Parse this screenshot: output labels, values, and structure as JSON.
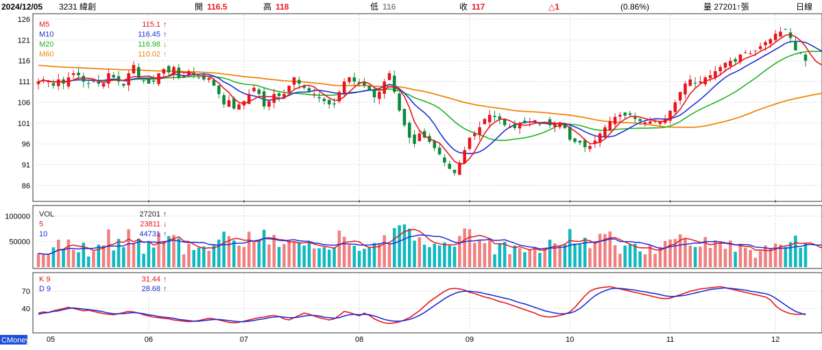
{
  "header": {
    "date": "2024/12/05",
    "code_name": "3231 緯創",
    "open_label": "開",
    "open_value": "116.5",
    "high_label": "高",
    "high_value": "118",
    "low_label": "低",
    "low_value": "116",
    "close_label": "收",
    "close_value": "117",
    "change": "△1",
    "change_pct": "(0.86%)",
    "volume": "量 27201↑張",
    "period": "日線"
  },
  "brand": "CMoney",
  "colors": {
    "up": "#e8141c",
    "down": "#0a8a3a",
    "ma5": "#e8141c",
    "ma10": "#1a2fd6",
    "ma20": "#1fb31f",
    "ma60": "#f0860c",
    "vol_up": "#f08080",
    "vol_down": "#10b8c0",
    "k": "#e8141c",
    "d": "#1a2fd6",
    "grid": "#b8b8b8",
    "frame": "#333333",
    "brand_bg": "#1c4fd8"
  },
  "price_legend": [
    {
      "label": "M5",
      "value": "115.1",
      "arrow": "↑",
      "color": "#e8141c"
    },
    {
      "label": "M10",
      "value": "116.45",
      "arrow": "↑",
      "color": "#1a2fd6"
    },
    {
      "label": "M20",
      "value": "116.98",
      "arrow": "↓",
      "color": "#1fb31f"
    },
    {
      "label": "M60",
      "value": "110.02",
      "arrow": "↑",
      "color": "#f0860c"
    }
  ],
  "volume_legend": [
    {
      "label": "VOL",
      "value": "27201",
      "arrow": "↑",
      "color": "#222222"
    },
    {
      "label": "5",
      "value": "23811",
      "arrow": "↓",
      "color": "#e8141c"
    },
    {
      "label": "10",
      "value": "44731",
      "arrow": "↑",
      "color": "#1a2fd6"
    }
  ],
  "kd_legend": [
    {
      "label": "K 9",
      "value": "31.44",
      "arrow": "↑",
      "color": "#e8141c"
    },
    {
      "label": "D 9",
      "value": "28.68",
      "arrow": "↑",
      "color": "#1a2fd6"
    }
  ],
  "chart_data": {
    "type": "candlestick",
    "price_axis": {
      "ticks": [
        "126",
        "121",
        "116",
        "111",
        "106",
        "101",
        "96",
        "91",
        "86"
      ],
      "min": 82.5,
      "max": 127
    },
    "volume_axis": {
      "ticks": [
        "100000",
        "50000"
      ],
      "max": 118000
    },
    "kd_axis": {
      "ticks": [
        "70",
        "40"
      ],
      "min": 0,
      "max": 100
    },
    "months": [
      "05",
      "06",
      "07",
      "08",
      "09",
      "10",
      "11",
      "12"
    ],
    "month_start_index": [
      0,
      22,
      41,
      64,
      86,
      106,
      126,
      147
    ],
    "n": 154,
    "close": [
      111,
      111.5,
      111,
      110,
      111.5,
      110.5,
      112,
      113,
      112.5,
      111,
      110.5,
      111,
      110.5,
      110.5,
      113,
      112,
      111,
      110,
      113,
      115,
      112,
      111.2,
      110.5,
      111,
      113,
      114,
      113.2,
      114.5,
      112,
      112.3,
      113.5,
      112.5,
      111.8,
      111.5,
      111.8,
      110,
      108,
      105.5,
      106.5,
      104.5,
      105.5,
      106.3,
      108,
      109.5,
      108,
      105,
      106.3,
      108,
      107.5,
      108,
      110,
      112,
      110.5,
      109.5,
      108.5,
      108,
      107,
      106.3,
      105.5,
      105.5,
      108.5,
      111,
      112,
      111,
      110.5,
      110,
      109,
      107.2,
      108.5,
      111,
      113,
      108.5,
      104,
      100.5,
      97.5,
      96,
      98.5,
      97.5,
      96.5,
      95,
      93.5,
      91.5,
      90,
      89,
      91.5,
      94.5,
      97.5,
      98.5,
      100,
      102,
      103,
      102.5,
      102,
      100.5,
      100,
      99.8,
      101,
      101,
      101.3,
      101.7,
      100.7,
      101.3,
      100.5,
      100.8,
      101.2,
      99.8,
      97,
      96.5,
      96.3,
      95.2,
      95.5,
      96.8,
      98.5,
      100,
      101.5,
      102.5,
      103,
      102.8,
      103,
      102,
      101.5,
      101.2,
      101.4,
      101.5,
      101.3,
      102,
      104,
      106,
      108.5,
      110.5,
      111.5,
      110.5,
      111,
      112,
      112.5,
      113.5,
      114.5,
      115.5,
      116,
      115.8,
      117.5,
      118,
      117.8,
      118.5,
      119.5,
      120.5,
      121.2,
      122.5,
      123,
      123.5,
      121.5,
      118.5,
      117.8,
      116,
      114,
      113.5,
      114.5,
      117
    ],
    "k_values": [
      32,
      34,
      33,
      36,
      38,
      40,
      42,
      40,
      38,
      36,
      37,
      35,
      33,
      31,
      30,
      29,
      31,
      33,
      35,
      34,
      32,
      29,
      27,
      25,
      24,
      23,
      22,
      20,
      19,
      18,
      17,
      18,
      19,
      21,
      23,
      22,
      20,
      18,
      16,
      15,
      16,
      18,
      20,
      22,
      24,
      25,
      27,
      28,
      26,
      22,
      20,
      24,
      28,
      32,
      30,
      27,
      24,
      22,
      20,
      22,
      28,
      35,
      33,
      30,
      27,
      32,
      28,
      22,
      18,
      15,
      14,
      15,
      17,
      20,
      24,
      30,
      36,
      44,
      52,
      58,
      64,
      70,
      74,
      75,
      74,
      72,
      68,
      66,
      63,
      60,
      58,
      55,
      52,
      50,
      47,
      44,
      41,
      38,
      35,
      32,
      28,
      26,
      25,
      26,
      28,
      30,
      34,
      42,
      52,
      62,
      70,
      74,
      76,
      77,
      78,
      76,
      74,
      72,
      70,
      68,
      66,
      64,
      62,
      60,
      58,
      57,
      58,
      61,
      64,
      67,
      70,
      72,
      74,
      75,
      76,
      77,
      78,
      76,
      74,
      72,
      70,
      68,
      66,
      64,
      62,
      60,
      55,
      45,
      38,
      34,
      31,
      30,
      30,
      31
    ],
    "d_values": [
      30,
      32,
      33,
      35,
      36,
      38,
      40,
      41,
      40,
      39,
      38,
      37,
      36,
      34,
      32,
      31,
      31,
      31,
      32,
      33,
      32,
      31,
      29,
      28,
      26,
      25,
      24,
      23,
      21,
      20,
      19,
      18,
      18,
      19,
      20,
      21,
      21,
      20,
      19,
      18,
      17,
      17,
      18,
      19,
      21,
      22,
      24,
      25,
      26,
      25,
      24,
      24,
      25,
      27,
      28,
      28,
      27,
      25,
      24,
      23,
      24,
      27,
      29,
      30,
      29,
      30,
      29,
      27,
      24,
      21,
      19,
      18,
      18,
      19,
      21,
      24,
      28,
      33,
      39,
      45,
      51,
      57,
      62,
      66,
      69,
      70,
      70,
      69,
      68,
      66,
      64,
      62,
      60,
      58,
      56,
      53,
      50,
      48,
      45,
      42,
      39,
      36,
      34,
      32,
      31,
      31,
      32,
      35,
      40,
      47,
      55,
      62,
      67,
      71,
      74,
      75,
      75,
      74,
      73,
      72,
      70,
      69,
      67,
      66,
      64,
      62,
      61,
      61,
      62,
      63,
      65,
      67,
      69,
      71,
      73,
      74,
      75,
      76,
      75,
      74,
      73,
      72,
      70,
      69,
      67,
      66,
      63,
      58,
      52,
      46,
      40,
      35,
      32,
      29
    ]
  }
}
